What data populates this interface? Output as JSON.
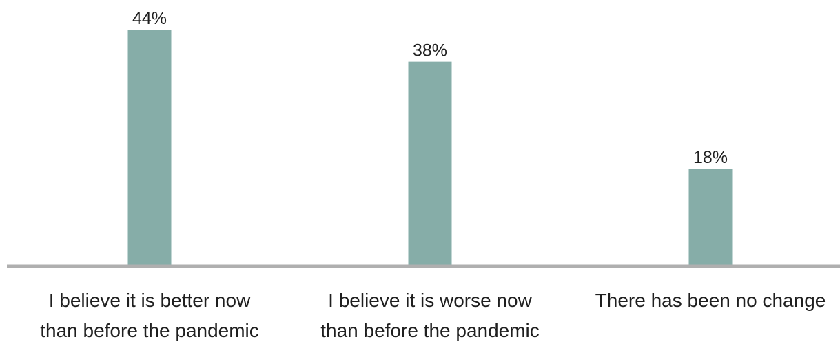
{
  "chart_data": {
    "type": "bar",
    "categories": [
      [
        "I believe it is better now",
        "than before the pandemic"
      ],
      [
        "I believe it is worse now",
        "than before the pandemic"
      ],
      [
        "There has been no change"
      ]
    ],
    "values": [
      44,
      38,
      18
    ],
    "value_labels": [
      "44%",
      "38%",
      "18%"
    ],
    "ylim": [
      0,
      44
    ],
    "grid": false,
    "legend": "none"
  },
  "colors": {
    "bar": "#86ADA8",
    "axis": "#AFAFAF",
    "text": "#1F1F1F"
  }
}
